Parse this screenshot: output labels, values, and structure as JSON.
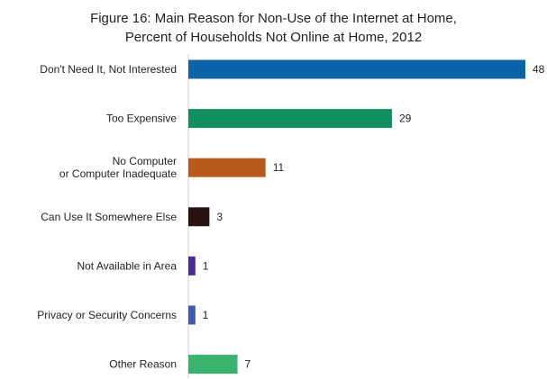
{
  "chart_data": {
    "type": "bar",
    "orientation": "horizontal",
    "title": "Figure 16: Main Reason for Non-Use of the Internet at Home,",
    "subtitle": "Percent of Households Not Online at Home, 2012",
    "categories": [
      [
        "Don't Need It, Not Interested"
      ],
      [
        "Too Expensive"
      ],
      [
        "No Computer",
        "or Computer Inadequate"
      ],
      [
        "Can Use It Somewhere Else"
      ],
      [
        "Not Available in Area"
      ],
      [
        "Privacy or Security Concerns"
      ],
      [
        "Other Reason"
      ]
    ],
    "values": [
      48,
      29,
      11,
      3,
      1,
      1,
      7
    ],
    "value_labels": [
      "48",
      "29",
      "11",
      "3",
      "1",
      "1",
      "7"
    ],
    "colors": [
      "#0c63a6",
      "#128f5f",
      "#b85a1e",
      "#2a1212",
      "#4d2a96",
      "#3e5aa8",
      "#39b46e"
    ],
    "xlim": [
      0,
      48
    ],
    "grid": false,
    "legend": "none"
  }
}
